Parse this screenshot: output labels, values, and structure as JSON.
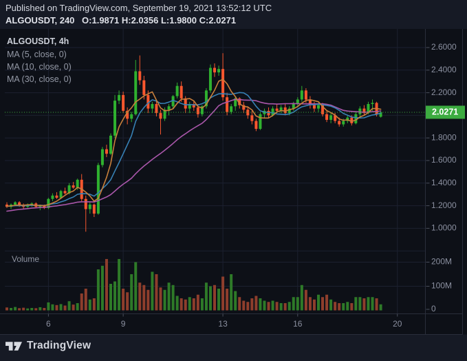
{
  "header": {
    "published_line": "Published on TradingView.com, September 19, 2021 13:52:12 UTC",
    "symbol_line": "ALGOUSDT, 240",
    "ohlc_line": "O:1.9871 H:2.0356 L:1.9800 C:2.0271",
    "ohlc": {
      "open": "1.9871",
      "high": "2.0356",
      "low": "1.9800",
      "close": "2.0271"
    }
  },
  "legend": {
    "title": "ALGOUSDT, 4h",
    "items": [
      "MA (5, close, 0)",
      "MA (10, close, 0)",
      "MA (30, close, 0)"
    ]
  },
  "volume_label": "Volume",
  "footer": {
    "logo_text": "TradingView"
  },
  "colors": {
    "up": "#2fb12f",
    "down": "#f9572e",
    "vol_up": "#2e7a28",
    "vol_down": "#8e3e2c",
    "ma5": "#c9803c",
    "ma10": "#3781b5",
    "ma30": "#aa57ab",
    "last_price_line": "#3fae3f",
    "badge_bg": "#3cab40",
    "badge_text": "#ffffff",
    "grid": "#1c2130",
    "axis_border": "#2a2e3b",
    "tick_mark": "#4a4f5c",
    "text_dim": "#8b90a0",
    "bg_chart": "#0d1017",
    "bg_page": "#161a25"
  },
  "chart_data": {
    "type": "candlestick",
    "symbol": "ALGOUSDT",
    "interval": "4h",
    "title": "ALGOUSDT, 4h",
    "last_price": 2.0271,
    "last_price_label": "2.0271",
    "price_axis": {
      "tick_labels": [
        "2.6000",
        "2.4000",
        "2.2000",
        "1.8000",
        "1.6000",
        "1.4000",
        "1.2000",
        "1.0000"
      ],
      "tick_values": [
        2.6,
        2.4,
        2.2,
        1.8,
        1.6,
        1.4,
        1.2,
        1.0
      ],
      "grid_only_values": [
        2.0,
        0.8
      ],
      "range_shown": [
        0.8,
        2.72
      ]
    },
    "time_axis": {
      "labels": [
        "6",
        "9",
        "13",
        "16",
        "20"
      ],
      "label_indices": [
        10,
        28,
        52,
        70,
        94
      ],
      "month": "September 2021"
    },
    "volume_axis": {
      "ticks": [
        {
          "value_m": 200,
          "label": "200M"
        },
        {
          "value_m": 100,
          "label": "100M"
        },
        {
          "value_m": 0,
          "label": "0"
        }
      ]
    },
    "ma": {
      "periods": [
        5,
        10,
        30
      ],
      "prehistory_closes": [
        1.04,
        1.05,
        1.06,
        1.07,
        1.08,
        1.09,
        1.1,
        1.11,
        1.12,
        1.13,
        1.14,
        1.14,
        1.15,
        1.15,
        1.16,
        1.16,
        1.17,
        1.17,
        1.18,
        1.18,
        1.19,
        1.19,
        1.2,
        1.2,
        1.19,
        1.19,
        1.2,
        1.2,
        1.19,
        1.2
      ]
    },
    "candles_format": [
      "open",
      "high",
      "low",
      "close",
      "volume_millions"
    ],
    "candles": [
      [
        1.21,
        1.23,
        1.18,
        1.19,
        12
      ],
      [
        1.19,
        1.22,
        1.17,
        1.21,
        10
      ],
      [
        1.21,
        1.24,
        1.2,
        1.23,
        14
      ],
      [
        1.23,
        1.24,
        1.19,
        1.2,
        9
      ],
      [
        1.2,
        1.22,
        1.17,
        1.19,
        11
      ],
      [
        1.19,
        1.22,
        1.18,
        1.21,
        8
      ],
      [
        1.21,
        1.23,
        1.19,
        1.22,
        10
      ],
      [
        1.22,
        1.23,
        1.18,
        1.19,
        9
      ],
      [
        1.19,
        1.21,
        1.16,
        1.2,
        13
      ],
      [
        1.2,
        1.21,
        1.17,
        1.18,
        10
      ],
      [
        1.18,
        1.27,
        1.17,
        1.26,
        33
      ],
      [
        1.26,
        1.31,
        1.24,
        1.29,
        25
      ],
      [
        1.29,
        1.32,
        1.26,
        1.27,
        22
      ],
      [
        1.27,
        1.34,
        1.26,
        1.33,
        26
      ],
      [
        1.33,
        1.36,
        1.3,
        1.31,
        20
      ],
      [
        1.31,
        1.4,
        1.3,
        1.38,
        38
      ],
      [
        1.38,
        1.41,
        1.35,
        1.36,
        24
      ],
      [
        1.36,
        1.44,
        1.34,
        1.43,
        30
      ],
      [
        1.43,
        1.48,
        1.24,
        1.26,
        70
      ],
      [
        1.26,
        1.29,
        0.97,
        1.17,
        90
      ],
      [
        1.17,
        1.23,
        1.13,
        1.21,
        45
      ],
      [
        1.21,
        1.22,
        1.1,
        1.13,
        50
      ],
      [
        1.13,
        1.58,
        1.12,
        1.56,
        170
      ],
      [
        1.56,
        1.72,
        1.54,
        1.7,
        185
      ],
      [
        1.7,
        1.74,
        1.63,
        1.66,
        213
      ],
      [
        1.66,
        1.84,
        1.65,
        1.82,
        110
      ],
      [
        1.82,
        2.18,
        1.8,
        2.13,
        120
      ],
      [
        2.13,
        2.22,
        2.1,
        2.18,
        213
      ],
      [
        2.18,
        2.21,
        2.02,
        2.04,
        90
      ],
      [
        2.04,
        2.07,
        1.92,
        1.97,
        75
      ],
      [
        1.97,
        2.03,
        1.94,
        2.01,
        150
      ],
      [
        2.01,
        2.49,
        2.0,
        2.39,
        200
      ],
      [
        2.39,
        2.53,
        2.27,
        2.31,
        115
      ],
      [
        2.31,
        2.35,
        2.14,
        2.18,
        105
      ],
      [
        2.18,
        2.22,
        2.02,
        2.06,
        85
      ],
      [
        2.06,
        2.12,
        2.02,
        2.1,
        160
      ],
      [
        2.1,
        2.13,
        1.99,
        2.02,
        150
      ],
      [
        2.02,
        2.05,
        1.83,
        1.97,
        95
      ],
      [
        1.97,
        2.07,
        1.95,
        2.05,
        85
      ],
      [
        2.05,
        2.1,
        2.0,
        2.08,
        115
      ],
      [
        2.08,
        2.18,
        2.06,
        2.17,
        105
      ],
      [
        2.17,
        2.29,
        2.15,
        2.26,
        60
      ],
      [
        2.26,
        2.3,
        2.12,
        2.15,
        50
      ],
      [
        2.15,
        2.17,
        2.02,
        2.06,
        45
      ],
      [
        2.06,
        2.12,
        2.02,
        2.1,
        55
      ],
      [
        2.1,
        2.13,
        2.04,
        2.07,
        50
      ],
      [
        2.07,
        2.1,
        1.98,
        2.01,
        65
      ],
      [
        2.01,
        2.09,
        1.99,
        2.08,
        50
      ],
      [
        2.08,
        2.24,
        2.06,
        2.22,
        115
      ],
      [
        2.22,
        2.45,
        2.2,
        2.42,
        100
      ],
      [
        2.42,
        2.46,
        2.34,
        2.38,
        105
      ],
      [
        2.38,
        2.44,
        2.35,
        2.41,
        90
      ],
      [
        2.41,
        2.55,
        2.13,
        2.16,
        140
      ],
      [
        2.16,
        2.2,
        2.0,
        2.03,
        90
      ],
      [
        2.03,
        2.1,
        2.01,
        2.08,
        150
      ],
      [
        2.08,
        2.17,
        2.04,
        2.15,
        80
      ],
      [
        2.15,
        2.16,
        2.06,
        2.09,
        55
      ],
      [
        2.09,
        2.12,
        2.02,
        2.05,
        40
      ],
      [
        2.05,
        2.08,
        1.97,
        2.0,
        35
      ],
      [
        2.0,
        2.04,
        1.92,
        1.95,
        50
      ],
      [
        1.95,
        1.97,
        1.86,
        1.88,
        60
      ],
      [
        1.88,
        2.03,
        1.87,
        2.01,
        50
      ],
      [
        2.01,
        2.06,
        1.98,
        2.04,
        40
      ],
      [
        2.04,
        2.07,
        1.98,
        2.0,
        35
      ],
      [
        2.0,
        2.08,
        1.99,
        2.06,
        40
      ],
      [
        2.06,
        2.1,
        2.02,
        2.04,
        35
      ],
      [
        2.04,
        2.09,
        2.02,
        2.07,
        30
      ],
      [
        2.07,
        2.1,
        2.0,
        2.02,
        30
      ],
      [
        2.02,
        2.08,
        2.0,
        2.06,
        35
      ],
      [
        2.06,
        2.12,
        2.04,
        2.1,
        55
      ],
      [
        2.1,
        2.16,
        2.07,
        2.14,
        55
      ],
      [
        2.14,
        2.26,
        2.12,
        2.22,
        105
      ],
      [
        2.22,
        2.24,
        2.11,
        2.14,
        85
      ],
      [
        2.14,
        2.17,
        2.06,
        2.09,
        55
      ],
      [
        2.09,
        2.12,
        2.03,
        2.06,
        45
      ],
      [
        2.06,
        2.11,
        2.03,
        2.09,
        65
      ],
      [
        2.09,
        2.11,
        1.99,
        2.01,
        55
      ],
      [
        2.01,
        2.04,
        1.94,
        1.96,
        65
      ],
      [
        1.96,
        2.02,
        1.93,
        2.0,
        45
      ],
      [
        2.0,
        2.02,
        1.93,
        1.95,
        35
      ],
      [
        1.95,
        1.98,
        1.9,
        1.92,
        30
      ],
      [
        1.92,
        1.97,
        1.9,
        1.95,
        30
      ],
      [
        1.95,
        2.0,
        1.93,
        1.98,
        35
      ],
      [
        1.98,
        2.0,
        1.91,
        1.93,
        30
      ],
      [
        1.93,
        2.03,
        1.92,
        2.01,
        55
      ],
      [
        2.01,
        2.08,
        1.99,
        2.06,
        55
      ],
      [
        2.06,
        2.09,
        2.0,
        2.02,
        50
      ],
      [
        2.02,
        2.12,
        2.01,
        2.1,
        55
      ],
      [
        2.1,
        2.14,
        2.04,
        2.11,
        55
      ],
      [
        2.11,
        2.12,
        1.99,
        2.01,
        50
      ],
      [
        1.9871,
        2.0356,
        1.98,
        2.0271,
        25
      ]
    ]
  }
}
